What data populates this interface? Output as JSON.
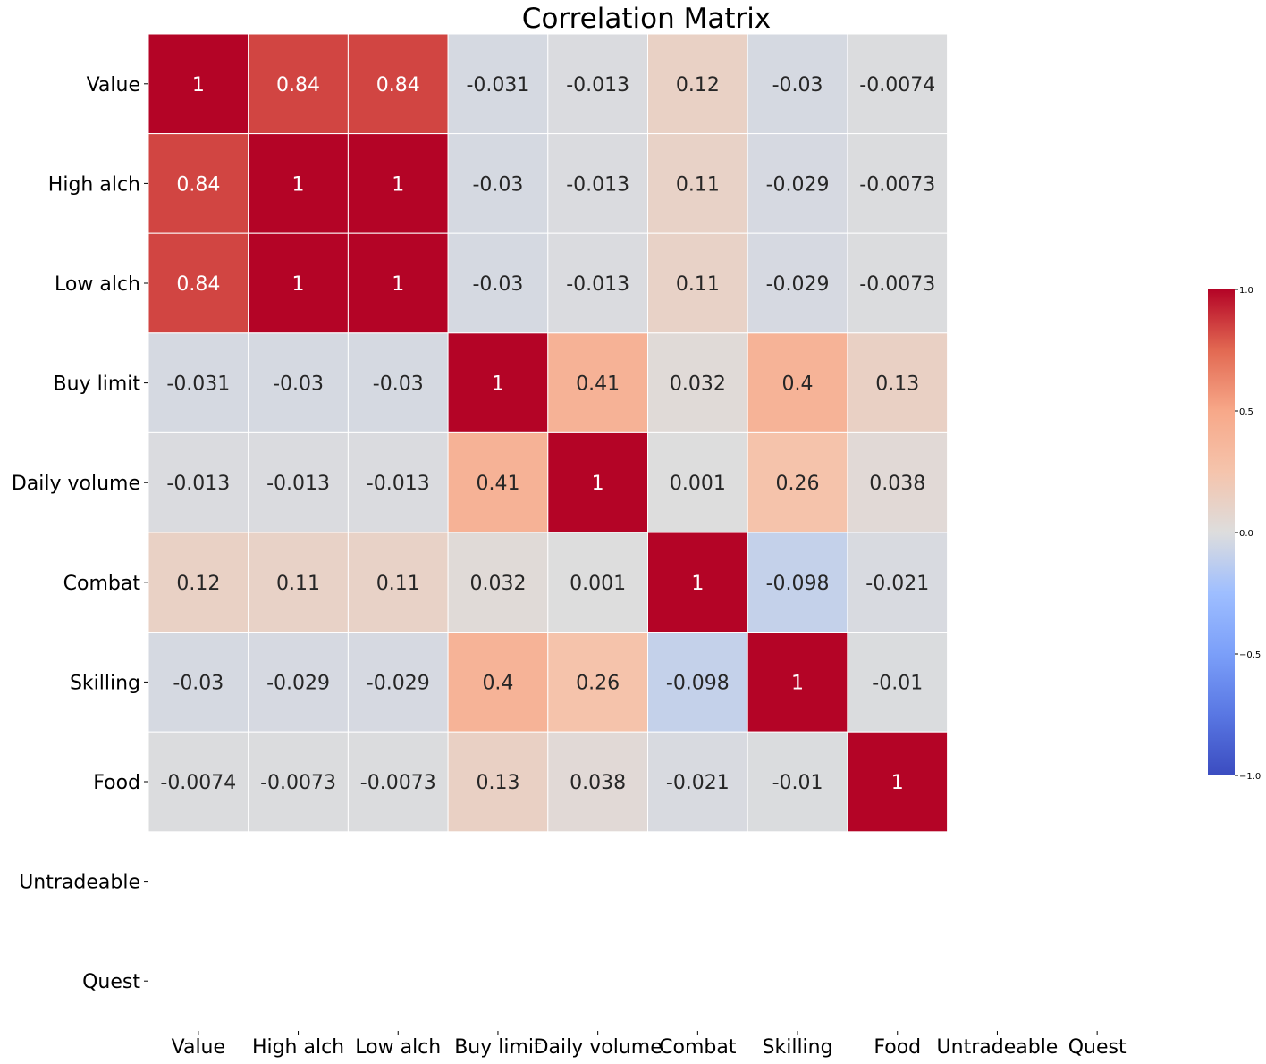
{
  "chart_data": {
    "type": "heatmap",
    "title": "Correlation Matrix",
    "row_labels": [
      "Value",
      "High alch",
      "Low alch",
      "Buy limit",
      "Daily volume",
      "Combat",
      "Skilling",
      "Food",
      "Untradeable",
      "Quest"
    ],
    "col_labels": [
      "Value",
      "High alch",
      "Low alch",
      "Buy limit",
      "Daily volume",
      "Combat",
      "Skilling",
      "Food",
      "Untradeable",
      "Quest"
    ],
    "values": [
      [
        1,
        0.84,
        0.84,
        -0.031,
        -0.013,
        0.12,
        -0.03,
        -0.0074,
        null,
        null
      ],
      [
        0.84,
        1,
        1,
        -0.03,
        -0.013,
        0.11,
        -0.029,
        -0.0073,
        null,
        null
      ],
      [
        0.84,
        1,
        1,
        -0.03,
        -0.013,
        0.11,
        -0.029,
        -0.0073,
        null,
        null
      ],
      [
        -0.031,
        -0.03,
        -0.03,
        1,
        0.41,
        0.032,
        0.4,
        0.13,
        null,
        null
      ],
      [
        -0.013,
        -0.013,
        -0.013,
        0.41,
        1,
        0.001,
        0.26,
        0.038,
        null,
        null
      ],
      [
        0.12,
        0.11,
        0.11,
        0.032,
        0.001,
        1,
        -0.098,
        -0.021,
        null,
        null
      ],
      [
        -0.03,
        -0.029,
        -0.029,
        0.4,
        0.26,
        -0.098,
        1,
        -0.01,
        null,
        null
      ],
      [
        -0.0074,
        -0.0073,
        -0.0073,
        0.13,
        0.038,
        -0.021,
        -0.01,
        1,
        null,
        null
      ],
      [
        null,
        null,
        null,
        null,
        null,
        null,
        null,
        null,
        null,
        null
      ],
      [
        null,
        null,
        null,
        null,
        null,
        null,
        null,
        null,
        null,
        null
      ]
    ],
    "value_labels": [
      [
        "1",
        "0.84",
        "0.84",
        "-0.031",
        "-0.013",
        "0.12",
        "-0.03",
        "-0.0074"
      ],
      [
        "0.84",
        "1",
        "1",
        "-0.03",
        "-0.013",
        "0.11",
        "-0.029",
        "-0.0073"
      ],
      [
        "0.84",
        "1",
        "1",
        "-0.03",
        "-0.013",
        "0.11",
        "-0.029",
        "-0.0073"
      ],
      [
        "-0.031",
        "-0.03",
        "-0.03",
        "1",
        "0.41",
        "0.032",
        "0.4",
        "0.13"
      ],
      [
        "-0.013",
        "-0.013",
        "-0.013",
        "0.41",
        "1",
        "0.001",
        "0.26",
        "0.038"
      ],
      [
        "0.12",
        "0.11",
        "0.11",
        "0.032",
        "0.001",
        "1",
        "-0.098",
        "-0.021"
      ],
      [
        "-0.03",
        "-0.029",
        "-0.029",
        "0.4",
        "0.26",
        "-0.098",
        "1",
        "-0.01"
      ],
      [
        "-0.0074",
        "-0.0073",
        "-0.0073",
        "0.13",
        "0.038",
        "-0.021",
        "-0.01",
        "1"
      ]
    ],
    "colormap": "coolwarm",
    "vmin": -1.0,
    "vmax": 1.0,
    "colorbar_ticks": [
      1.0,
      0.5,
      0.0,
      -0.5,
      -1.0
    ],
    "colorbar_tick_labels": [
      "1.0",
      "0.5",
      "0.0",
      "−0.5",
      "−1.0"
    ],
    "colors": {
      "low": "#3b4cc0",
      "mid": "#dddddd",
      "high": "#b40426"
    }
  }
}
